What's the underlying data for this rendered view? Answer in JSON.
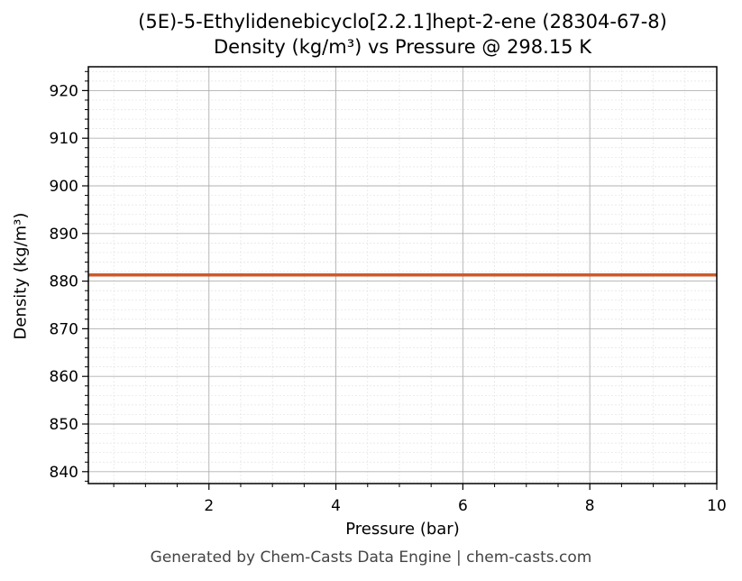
{
  "chart_data": {
    "type": "line",
    "title": "(5E)-5-Ethylidenebicyclo[2.2.1]hept-2-ene (28304-67-8)",
    "subtitle": "Density (kg/m³) vs Pressure @ 298.15 K",
    "xlabel": "Pressure (bar)",
    "ylabel": "Density (kg/m³)",
    "xlim": [
      0.1,
      10
    ],
    "ylim": [
      837.5,
      925
    ],
    "xticks": [
      2,
      4,
      6,
      8,
      10
    ],
    "yticks": [
      840,
      850,
      860,
      870,
      880,
      890,
      900,
      910,
      920
    ],
    "grid": true,
    "series": [
      {
        "color": "#cc5a2a",
        "x": [
          0.1,
          1,
          2,
          3,
          4,
          5,
          6,
          7,
          8,
          9,
          10
        ],
        "y": [
          881.3,
          881.3,
          881.3,
          881.3,
          881.3,
          881.3,
          881.3,
          881.3,
          881.3,
          881.3,
          881.3
        ]
      }
    ]
  },
  "footer": "Generated by Chem-Casts Data Engine | chem-casts.com"
}
